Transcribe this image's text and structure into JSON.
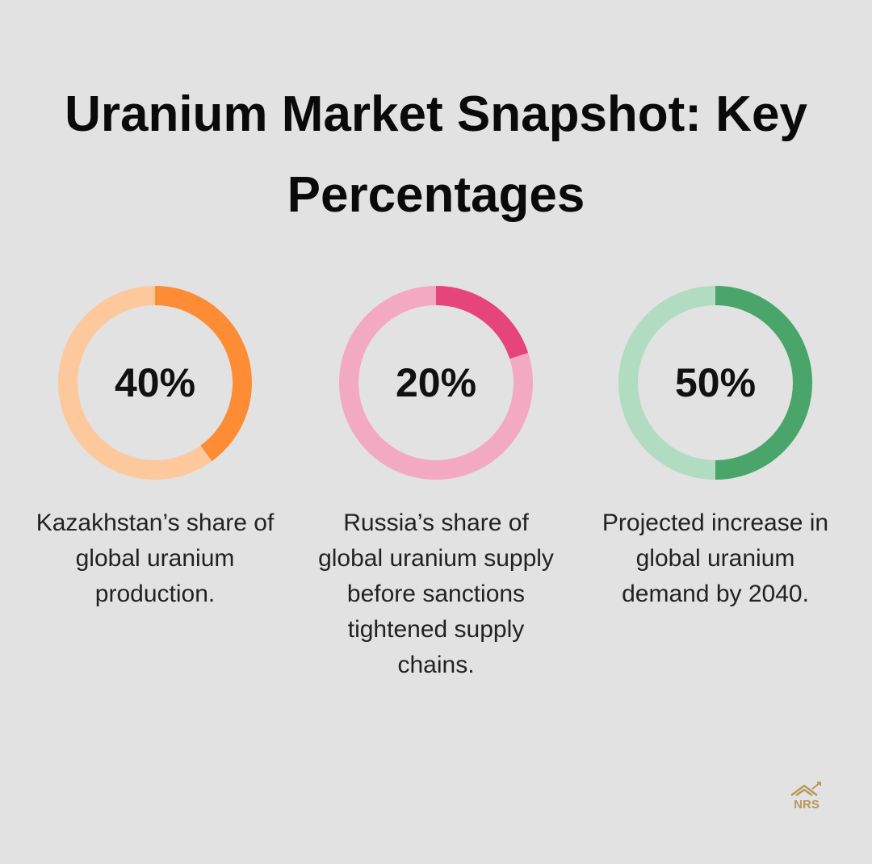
{
  "title": "Uranium Market Snapshot: Key Percentages",
  "chart_data": [
    {
      "type": "donut",
      "values": [
        40
      ],
      "value_labels": [
        "40%"
      ],
      "color": "#fd8c35",
      "track_color": "#fdc99c",
      "description": "Kazakhstan’s share of global uranium production."
    },
    {
      "type": "donut",
      "values": [
        20
      ],
      "value_labels": [
        "20%"
      ],
      "color": "#e5457a",
      "track_color": "#f3a9c1",
      "description": "Russia’s share of global uranium supply before sanctions tightened supply chains."
    },
    {
      "type": "donut",
      "values": [
        50
      ],
      "value_labels": [
        "50%"
      ],
      "color": "#4aa56a",
      "track_color": "#b1dcc2",
      "description": "Projected increase in global uranium demand by 2040."
    }
  ],
  "logo": {
    "text": "NRS"
  }
}
